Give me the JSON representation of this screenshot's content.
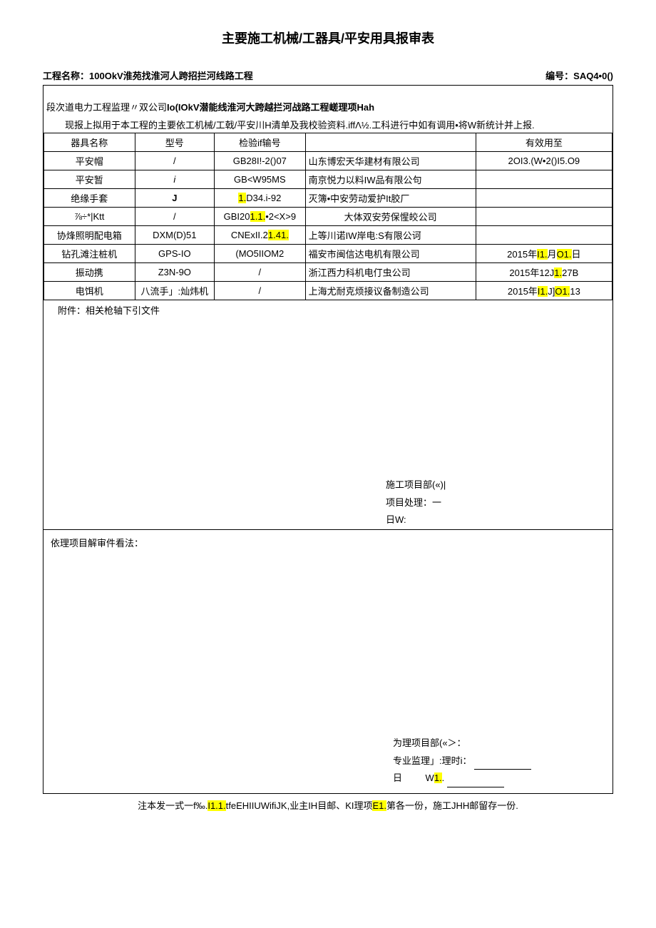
{
  "title": "主要施工机械/工器具/平安用具报审表",
  "header": {
    "project_label": "工程名称：",
    "project_name": "100OkV淮苑找淮河人跨招拦河线路工程",
    "number_label": "编号：",
    "number_value": "SAQ4•0()"
  },
  "intro": {
    "line1_prefix": "段次道电力工程监理〃双公司",
    "line1_bold": "Io(IOkV潜能线淮河大跨越拦河战路工程嵯理项Hah",
    "line2": "现报上拟用于本工程的主要依工机械/工戟/平安川H清单及我校验资料.iffΛ½.工科进行中如有调用•将W新统计并上报."
  },
  "table": {
    "headers": {
      "name": "器具名称",
      "model": "型号",
      "cert": "检验if输号",
      "mfr": "",
      "valid": "有效用至"
    },
    "rows": [
      {
        "name": "平安帽",
        "model": "/",
        "cert": "GB28I!-2()07",
        "mfr": "山东博宏天华建材有限公司",
        "valid": "2OI3.(W•2()I5.O9"
      },
      {
        "name": "平安暂",
        "model_italic": "i",
        "cert": "GB<W95MS",
        "mfr": "南京悦力以料IW品有限公句",
        "valid": ""
      },
      {
        "name": "绝缘手套",
        "model_bold": "J",
        "cert_pre": "",
        "cert_hl": "1.",
        "cert_post": "D34.i-92",
        "mfr": "灭簿•中安劳动爱护It胶厂",
        "valid": ""
      },
      {
        "name": "⅞÷*|Ktt",
        "model": "/",
        "cert_pre": "GBI20",
        "cert_hl": "1.1.",
        "cert_post": "•2<X>9",
        "mfr": "大体双安劳保惺皎公司",
        "valid": ""
      },
      {
        "name": "协烽照明配电箱",
        "model": "DXM(D)51",
        "cert_pre": "CNExII.2",
        "cert_hl": "1.41.",
        "cert_post": "",
        "mfr": "上等川诺IW岸电:S有限公诃",
        "valid": ""
      },
      {
        "name": "钻孔滩注桩机",
        "model": "GPS-IO",
        "cert": "(MO5IIOM2",
        "mfr": "福安市闽信达电机有限公司",
        "valid_pre": "2015年",
        "valid_hl1": "I1.",
        "valid_mid": "月",
        "valid_hl2": "O1.",
        "valid_post": "日"
      },
      {
        "name": "振动携",
        "model": "Z3N-9O",
        "cert": "/",
        "mfr": "浙江西力科机电仃虫公司",
        "valid_pre": "2015年12J",
        "valid_hl1": "1.",
        "valid_post": "27B"
      },
      {
        "name": "电饵机",
        "model": "八流手」:灿炜机",
        "cert": "/",
        "mfr": "上海尤耐克烦接议备制造公司",
        "valid_pre": "2015年",
        "valid_hl1": "I1.",
        "valid_mid": "J]",
        "valid_hl2": "O1.",
        "valid_post": "13"
      }
    ]
  },
  "attachment": "附件：相关枪轴下引文件",
  "sign1": {
    "line1": "施工项目部(«)|",
    "line2": "项目处理：一",
    "line3": "日W:"
  },
  "opinion_label": "依理项目解审件看法：",
  "sign2": {
    "line1": "为理项目部(«＞：",
    "line2": "专业监理」:理时i：",
    "line3_pre": "日",
    "line3_mid": "W",
    "line3_hl": "1.",
    "line3_post": "."
  },
  "footer": {
    "pre": "注本发一式一f‰.",
    "hl1": "I1.1.",
    "mid1": "tfeEHIIUWifiJK,业主IH目邮、KI理项",
    "hl2": "E1.",
    "post": "第各一份，施工JHH邮留存一份."
  }
}
